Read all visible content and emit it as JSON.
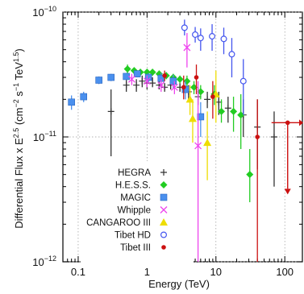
{
  "chart_data": {
    "type": "scatter",
    "title": "",
    "xlabel": "Energy (TeV)",
    "ylabel": "Differential Flux x E^2.5 (cm^-2 s^-1 TeV^1.5)",
    "ylabel_parts": {
      "main": "Differential Flux x E",
      "exp1": "2.5",
      "units_open": " (cm",
      "exp2": "−2",
      "units_mid": " s",
      "exp3": "−1",
      "units_mid2": " TeV",
      "exp4": "1.5",
      "units_close": ")"
    },
    "xscale": "log",
    "yscale": "log",
    "xlim": [
      0.06,
      180
    ],
    "ylim": [
      1e-12,
      1e-10
    ],
    "grid": "dotted",
    "legend_placement": "lower-left",
    "x_ticks": [
      {
        "value": 0.1,
        "label": "0.1"
      },
      {
        "value": 1,
        "label": "1"
      },
      {
        "value": 10,
        "label": "10"
      },
      {
        "value": 100,
        "label": "100"
      }
    ],
    "y_ticks": [
      {
        "value": 1e-12,
        "base": "10",
        "exp": "−12"
      },
      {
        "value": 1e-11,
        "base": "10",
        "exp": "−11"
      },
      {
        "value": 1e-10,
        "base": "10",
        "exp": "−10"
      }
    ],
    "series": [
      {
        "name": "HEGRA",
        "marker": "plus",
        "color": "#333333",
        "points": [
          {
            "x": 0.5,
            "y": 2.6e-11,
            "lo": 2.3e-11,
            "hi": 2.9e-11
          },
          {
            "x": 0.7,
            "y": 2.6e-11,
            "lo": 2.3e-11,
            "hi": 2.9e-11
          },
          {
            "x": 0.85,
            "y": 2.8e-11,
            "lo": 2.5e-11,
            "hi": 3.1e-11
          },
          {
            "x": 1.0,
            "y": 2.7e-11,
            "lo": 2.4e-11,
            "hi": 3e-11
          },
          {
            "x": 1.2,
            "y": 2.7e-11,
            "lo": 2.5e-11,
            "hi": 3e-11
          },
          {
            "x": 1.5,
            "y": 2.6e-11,
            "lo": 2.4e-11,
            "hi": 2.8e-11
          },
          {
            "x": 1.8,
            "y": 2.5e-11,
            "lo": 2.3e-11,
            "hi": 2.7e-11
          },
          {
            "x": 2.2,
            "y": 2.6e-11,
            "lo": 2.4e-11,
            "hi": 2.8e-11
          },
          {
            "x": 3.0,
            "y": 2.5e-11,
            "lo": 2.3e-11,
            "hi": 2.7e-11
          },
          {
            "x": 4.0,
            "y": 2.3e-11,
            "lo": 2e-11,
            "hi": 2.6e-11
          },
          {
            "x": 5.5,
            "y": 2.1e-11,
            "lo": 1.8e-11,
            "hi": 2.5e-11
          },
          {
            "x": 7.5,
            "y": 2e-11,
            "lo": 1.7e-11,
            "hi": 2.3e-11
          },
          {
            "x": 11,
            "y": 1.9e-11,
            "lo": 1.5e-11,
            "hi": 2.3e-11
          },
          {
            "x": 15,
            "y": 1.7e-11,
            "lo": 1.3e-11,
            "hi": 2.1e-11
          },
          {
            "x": 25,
            "y": 1.5e-11,
            "lo": 1e-11,
            "hi": 2e-11
          },
          {
            "x": 40,
            "y": 1.2e-11,
            "lo": 5.5e-12,
            "hi": 2e-11
          },
          {
            "x": 70,
            "y": 1e-11,
            "lo": 4e-12,
            "hi": 1.6e-11
          },
          {
            "x": 0.3,
            "y": 1.6e-11,
            "lo": 7e-12,
            "hi": 2.4e-11
          }
        ]
      },
      {
        "name": "H.E.S.S.",
        "marker": "diamond",
        "color": "#22cc22",
        "points": [
          {
            "x": 0.52,
            "y": 3.5e-11,
            "lo": 3.2e-11,
            "hi": 3.8e-11
          },
          {
            "x": 0.65,
            "y": 3.4e-11,
            "lo": 3.2e-11,
            "hi": 3.6e-11
          },
          {
            "x": 0.8,
            "y": 3.3e-11,
            "lo": 3.1e-11,
            "hi": 3.5e-11
          },
          {
            "x": 1.0,
            "y": 3.3e-11,
            "lo": 3.1e-11,
            "hi": 3.5e-11
          },
          {
            "x": 1.2,
            "y": 3.3e-11,
            "lo": 3.1e-11,
            "hi": 3.5e-11
          },
          {
            "x": 1.5,
            "y": 3.2e-11,
            "lo": 3e-11,
            "hi": 3.4e-11
          },
          {
            "x": 1.9,
            "y": 3.1e-11,
            "lo": 2.9e-11,
            "hi": 3.3e-11
          },
          {
            "x": 2.4,
            "y": 3e-11,
            "lo": 2.8e-11,
            "hi": 3.2e-11
          },
          {
            "x": 3.0,
            "y": 2.9e-11,
            "lo": 2.7e-11,
            "hi": 3.1e-11
          },
          {
            "x": 3.8,
            "y": 2.8e-11,
            "lo": 2.5e-11,
            "hi": 3.1e-11
          },
          {
            "x": 4.8,
            "y": 2.5e-11,
            "lo": 2.2e-11,
            "hi": 2.8e-11
          },
          {
            "x": 6.0,
            "y": 2.3e-11,
            "lo": 2e-11,
            "hi": 2.6e-11
          },
          {
            "x": 9.5,
            "y": 2.2e-11,
            "lo": 1.8e-11,
            "hi": 2.6e-11
          },
          {
            "x": 12,
            "y": 1.6e-11,
            "lo": 1.3e-11,
            "hi": 2e-11
          },
          {
            "x": 18,
            "y": 1.6e-11,
            "lo": 1.1e-11,
            "hi": 2.1e-11
          },
          {
            "x": 23,
            "y": 1.5e-11,
            "lo": 8e-12,
            "hi": 2.2e-11
          },
          {
            "x": 31,
            "y": 5e-12,
            "lo": 3e-12,
            "hi": 8e-12
          }
        ]
      },
      {
        "name": "MAGIC",
        "marker": "square",
        "color": "#4a90ee",
        "points": [
          {
            "x": 0.08,
            "y": 1.9e-11,
            "lo": 1.65e-11,
            "hi": 2.15e-11
          },
          {
            "x": 0.12,
            "y": 2.1e-11,
            "lo": 1.9e-11,
            "hi": 2.3e-11
          },
          {
            "x": 0.2,
            "y": 2.85e-11,
            "lo": 2.65e-11,
            "hi": 3.05e-11
          },
          {
            "x": 0.3,
            "y": 3e-11,
            "lo": 2.8e-11,
            "hi": 3.2e-11
          },
          {
            "x": 0.5,
            "y": 3.05e-11,
            "lo": 2.85e-11,
            "hi": 3.25e-11
          },
          {
            "x": 0.72,
            "y": 3.2e-11,
            "lo": 3e-11,
            "hi": 3.4e-11
          },
          {
            "x": 1.05,
            "y": 3e-11,
            "lo": 2.75e-11,
            "hi": 3.25e-11
          },
          {
            "x": 1.6,
            "y": 2.95e-11,
            "lo": 2.65e-11,
            "hi": 3.25e-11
          },
          {
            "x": 2.4,
            "y": 2.8e-11,
            "lo": 2.45e-11,
            "hi": 3.15e-11
          },
          {
            "x": 3.6,
            "y": 2.4e-11,
            "lo": 2e-11,
            "hi": 2.8e-11
          },
          {
            "x": 6.0,
            "y": 1.45e-11,
            "lo": 1e-11,
            "hi": 1.9e-11
          }
        ]
      },
      {
        "name": "Whipple",
        "marker": "cross",
        "color": "#ee44ee",
        "points": [
          {
            "x": 0.6,
            "y": 2.9e-11,
            "lo": 2.6e-11,
            "hi": 3.2e-11
          },
          {
            "x": 1.0,
            "y": 2.8e-11,
            "lo": 2.5e-11,
            "hi": 3.1e-11
          },
          {
            "x": 1.6,
            "y": 2.6e-11,
            "lo": 2.3e-11,
            "hi": 2.9e-11
          },
          {
            "x": 2.5,
            "y": 2.5e-11,
            "lo": 2.2e-11,
            "hi": 2.8e-11
          },
          {
            "x": 3.8,
            "y": 5.2e-11,
            "lo": 3.6e-11,
            "hi": 6.8e-11
          },
          {
            "x": 5.5,
            "y": 8.5e-12,
            "lo": 1e-12,
            "hi": 2.8e-11
          }
        ]
      },
      {
        "name": "CANGAROO III",
        "marker": "triangle",
        "color": "#eedd00",
        "points": [
          {
            "x": 4.2,
            "y": 2e-11,
            "lo": 1.5e-11,
            "hi": 2.6e-11
          },
          {
            "x": 4.6,
            "y": 1.4e-11,
            "lo": 9e-12,
            "hi": 2e-11
          },
          {
            "x": 7.5,
            "y": 9e-12,
            "lo": 4.5e-12,
            "hi": 1.6e-11
          },
          {
            "x": 10,
            "y": 2.2e-11,
            "lo": 1.3e-11,
            "hi": 3.4e-11
          }
        ]
      },
      {
        "name": "Tibet HD",
        "marker": "circle",
        "color": "#4455ee",
        "points": [
          {
            "x": 3.5,
            "y": 7.5e-11,
            "lo": 6.5e-11,
            "hi": 8.7e-11
          },
          {
            "x": 5.0,
            "y": 6.6e-11,
            "lo": 5.7e-11,
            "hi": 7.6e-11
          },
          {
            "x": 6.0,
            "y": 6.2e-11,
            "lo": 4.9e-11,
            "hi": 7.4e-11
          },
          {
            "x": 8.8,
            "y": 6.4e-11,
            "lo": 4.9e-11,
            "hi": 8e-11
          },
          {
            "x": 13,
            "y": 6.1e-11,
            "lo": 4.6e-11,
            "hi": 7.5e-11
          },
          {
            "x": 17,
            "y": 4.6e-11,
            "lo": 3e-11,
            "hi": 6.2e-11
          },
          {
            "x": 25,
            "y": 2.8e-11,
            "lo": 1.5e-11,
            "hi": 4.2e-11
          }
        ]
      },
      {
        "name": "Tibet III",
        "marker": "filled-circle",
        "color": "#cc1111",
        "points": [
          {
            "x": 1.8,
            "y": 3.1e-11,
            "lo": 2.8e-11,
            "hi": 3.4e-11
          },
          {
            "x": 3.4,
            "y": 2.5e-11,
            "lo": 2e-11,
            "hi": 3.1e-11
          },
          {
            "x": 5.2,
            "y": 3e-11,
            "lo": 2.2e-11,
            "hi": 3.8e-11
          },
          {
            "x": 9.0,
            "y": 2.1e-11,
            "lo": 1.4e-11,
            "hi": 2.8e-11
          },
          {
            "x": 40,
            "y": 1e-11,
            "lo": 1e-12,
            "hi": 2e-11
          },
          {
            "x": 110,
            "y": 1.3e-11,
            "upper_limit_arrow": true
          }
        ]
      }
    ]
  }
}
